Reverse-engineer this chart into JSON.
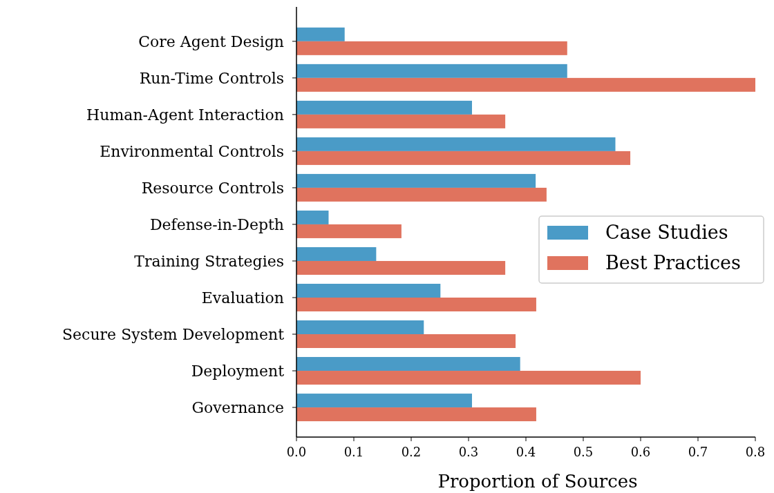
{
  "chart_data": {
    "type": "bar",
    "orientation": "horizontal",
    "xlabel": "Proportion of Sources",
    "categories": [
      "Core Agent Design",
      "Run-Time Controls",
      "Human-Agent Interaction",
      "Environmental Controls",
      "Resource Controls",
      "Defense-in-Depth",
      "Training Strategies",
      "Evaluation",
      "Secure System Development",
      "Deployment",
      "Governance"
    ],
    "series": [
      {
        "name": "Case Studies",
        "color": "#4a9bc7",
        "values": [
          0.084,
          0.472,
          0.306,
          0.556,
          0.417,
          0.056,
          0.139,
          0.251,
          0.222,
          0.39,
          0.306
        ]
      },
      {
        "name": "Best Practices",
        "color": "#e0735e",
        "values": [
          0.472,
          0.8,
          0.364,
          0.582,
          0.436,
          0.183,
          0.364,
          0.418,
          0.382,
          0.6,
          0.418
        ]
      }
    ],
    "xlim": [
      0,
      0.8
    ],
    "xticks": [
      {
        "value": 0,
        "label": "0.0"
      },
      0.1,
      0.2,
      0.3,
      0.4,
      0.5,
      0.6,
      0.7,
      0.8
    ],
    "legend": "right",
    "grid": false
  }
}
